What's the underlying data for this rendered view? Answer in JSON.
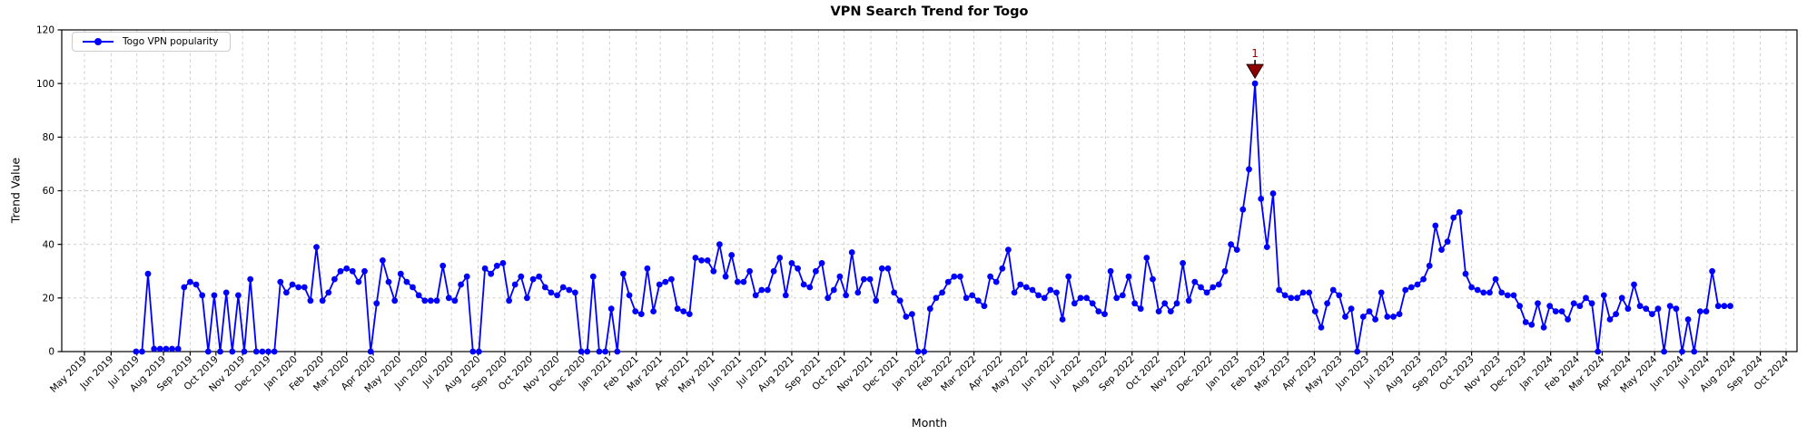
{
  "chart": {
    "title": "VPN Search Trend for Togo",
    "xlabel": "Month",
    "ylabel": "Trend Value",
    "legend": {
      "label": "Togo VPN popularity"
    }
  },
  "colors": {
    "line": "#0000ff",
    "annotation": "#8b0000",
    "grid": "#c8c8c8",
    "axis": "#000000",
    "background": "#ffffff"
  },
  "chart_data": {
    "type": "line",
    "title": "VPN Search Trend for Togo",
    "xlabel": "Month",
    "ylabel": "Trend Value",
    "ylim": [
      0,
      120
    ],
    "yticks": [
      0,
      20,
      40,
      60,
      80,
      100,
      120
    ],
    "grid": true,
    "legend_position": "upper left",
    "x_tick_labels": [
      "May 2019",
      "Jun 2019",
      "Jul 2019",
      "Aug 2019",
      "Sep 2019",
      "Oct 2019",
      "Nov 2019",
      "Dec 2019",
      "Jan 2020",
      "Feb 2020",
      "Mar 2020",
      "Apr 2020",
      "May 2020",
      "Jun 2020",
      "Jul 2020",
      "Aug 2020",
      "Sep 2020",
      "Oct 2020",
      "Nov 2020",
      "Dec 2020",
      "Jan 2021",
      "Feb 2021",
      "Mar 2021",
      "Apr 2021",
      "May 2021",
      "Jun 2021",
      "Jul 2021",
      "Aug 2021",
      "Sep 2021",
      "Oct 2021",
      "Nov 2021",
      "Dec 2021",
      "Jan 2022",
      "Feb 2022",
      "Mar 2022",
      "Apr 2022",
      "May 2022",
      "Jun 2022",
      "Jul 2022",
      "Aug 2022",
      "Sep 2022",
      "Oct 2022",
      "Nov 2022",
      "Dec 2022",
      "Jan 2023",
      "Feb 2023",
      "Mar 2023",
      "Apr 2023",
      "May 2023",
      "Jun 2023",
      "Jul 2023",
      "Aug 2023",
      "Sep 2023",
      "Oct 2023",
      "Nov 2023",
      "Dec 2023",
      "Jan 2024",
      "Feb 2024",
      "Mar 2024",
      "Apr 2024",
      "May 2024",
      "Jun 2024",
      "Jul 2024",
      "Aug 2024",
      "Sep 2024",
      "Oct 2024"
    ],
    "series": [
      {
        "name": "Togo VPN popularity",
        "color": "#0000ff",
        "marker": "circle",
        "start_date": "2019-06-30",
        "interval_days": 7,
        "values": [
          0,
          0,
          29,
          1,
          1,
          1,
          1,
          1,
          24,
          26,
          25,
          21,
          0,
          21,
          0,
          22,
          0,
          21,
          0,
          27,
          0,
          0,
          0,
          0,
          26,
          22,
          25,
          24,
          24,
          19,
          39,
          19,
          22,
          27,
          30,
          31,
          30,
          26,
          30,
          0,
          18,
          34,
          26,
          19,
          29,
          26,
          24,
          21,
          19,
          19,
          19,
          32,
          20,
          19,
          25,
          28,
          0,
          0,
          31,
          29,
          32,
          33,
          19,
          25,
          28,
          20,
          27,
          28,
          24,
          22,
          21,
          24,
          23,
          22,
          0,
          0,
          28,
          0,
          0,
          16,
          0,
          29,
          21,
          15,
          14,
          31,
          15,
          25,
          26,
          27,
          16,
          15,
          14,
          35,
          34,
          34,
          30,
          40,
          28,
          36,
          26,
          26,
          30,
          21,
          23,
          23,
          30,
          35,
          21,
          33,
          31,
          25,
          24,
          30,
          33,
          20,
          23,
          28,
          21,
          37,
          22,
          27,
          27,
          19,
          31,
          31,
          22,
          19,
          13,
          14,
          0,
          0,
          16,
          20,
          22,
          26,
          28,
          28,
          20,
          21,
          19,
          17,
          28,
          26,
          31,
          38,
          22,
          25,
          24,
          23,
          21,
          20,
          23,
          22,
          12,
          28,
          18,
          20,
          20,
          18,
          15,
          14,
          30,
          20,
          21,
          28,
          18,
          16,
          35,
          27,
          15,
          18,
          15,
          18,
          33,
          19,
          26,
          24,
          22,
          24,
          25,
          30,
          40,
          38,
          53,
          68,
          100,
          57,
          39,
          59,
          23,
          21,
          20,
          20,
          22,
          22,
          15,
          9,
          18,
          23,
          21,
          13,
          16,
          0,
          13,
          15,
          12,
          22,
          13,
          13,
          14,
          23,
          24,
          25,
          27,
          32,
          47,
          38,
          41,
          50,
          52,
          29,
          24,
          23,
          22,
          22,
          27,
          22,
          21,
          21,
          17,
          11,
          10,
          18,
          9,
          17,
          15,
          15,
          12,
          18,
          17,
          20,
          18,
          0,
          21,
          12,
          14,
          20,
          16,
          25,
          17,
          16,
          14,
          16,
          0,
          17,
          16,
          0,
          12,
          0,
          15,
          15,
          30,
          17,
          17,
          17
        ]
      }
    ],
    "annotations": [
      {
        "label": "1",
        "date": "2023-01-22",
        "value": 100,
        "marker": "triangle-down",
        "color": "#8b0000"
      }
    ]
  }
}
